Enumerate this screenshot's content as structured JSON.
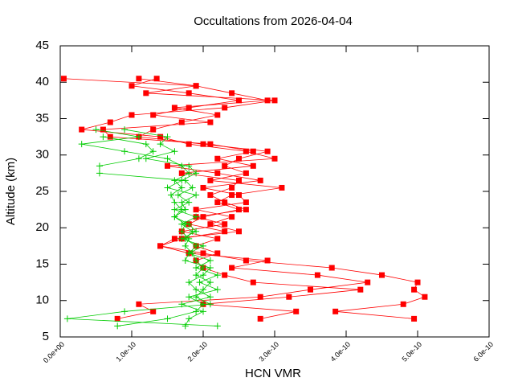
{
  "chart_data": {
    "type": "line",
    "title": "Occultations from 2026-04-04",
    "xlabel": "HCN VMR",
    "ylabel": "Altitude (km)",
    "xlim": [
      0,
      6e-10
    ],
    "ylim": [
      5,
      45
    ],
    "xticks": [
      {
        "value": 0,
        "label": "0.0e+00"
      },
      {
        "value": 1e-10,
        "label": "1.0e-10"
      },
      {
        "value": 2e-10,
        "label": "2.0e-10"
      },
      {
        "value": 3e-10,
        "label": "3.0e-10"
      },
      {
        "value": 4e-10,
        "label": "4.0e-10"
      },
      {
        "value": 5e-10,
        "label": "5.0e-10"
      },
      {
        "value": 6e-10,
        "label": "6.0e-10"
      }
    ],
    "yticks": [
      5,
      10,
      15,
      20,
      25,
      30,
      35,
      40,
      45
    ],
    "series": [
      {
        "color": "#ff0000",
        "marker": "square",
        "x": [
          5e-12,
          1.9e-10,
          2.4e-10,
          2.9e-10,
          1.6e-10,
          2.2e-10,
          1.7e-10,
          1.3e-10,
          1.1e-10,
          2e-10,
          2.9e-10,
          2.5e-10,
          2.3e-10,
          2.6e-10,
          2.1e-10,
          3.1e-10,
          2.4e-10,
          2.2e-10,
          2.5e-10,
          2e-10,
          1.8e-10,
          2.3e-10,
          1.7e-10,
          1.4e-10,
          2e-10,
          2.6e-10,
          3.8e-10,
          4.5e-10,
          5e-10,
          4.95e-10,
          5.1e-10,
          4.8e-10,
          3.85e-10,
          4.95e-10
        ],
        "values": [
          40.5,
          39.5,
          38.5,
          37.5,
          36.5,
          35.5,
          34.5,
          33.5,
          32.5,
          31.5,
          30.5,
          29.5,
          28.5,
          27.5,
          26.5,
          25.5,
          24.5,
          23.5,
          22.5,
          21.5,
          20.5,
          19.5,
          18.5,
          17.5,
          16.5,
          15.5,
          14.5,
          13.5,
          12.5,
          11.5,
          10.5,
          9.5,
          8.5,
          7.5
        ]
      },
      {
        "color": "#ff0000",
        "marker": "square",
        "x": [
          1.1e-10,
          1.9e-10,
          1.2e-10,
          3e-10,
          2.3e-10,
          1e-10,
          7e-11,
          3e-11,
          1.4e-10,
          1.8e-10,
          2.6e-10,
          3e-10,
          1.5e-10,
          2.2e-10,
          2.8e-10,
          2e-10,
          2.5e-10,
          2.6e-10,
          1.9e-10,
          2.4e-10,
          2.1e-10,
          2.5e-10,
          1.6e-10,
          1.4e-10,
          1.8e-10,
          2.9e-10,
          2.4e-10,
          3.6e-10,
          4.3e-10,
          3.5e-10,
          2.8e-10,
          1.1e-10,
          1.3e-10,
          8e-11
        ],
        "values": [
          40.5,
          39.5,
          38.5,
          37.5,
          36.5,
          35.5,
          34.5,
          33.5,
          32.5,
          31.5,
          30.5,
          29.5,
          28.5,
          27.5,
          26.5,
          25.5,
          24.5,
          23.5,
          22.5,
          21.5,
          20.5,
          19.5,
          18.5,
          17.5,
          16.5,
          15.5,
          14.5,
          13.5,
          12.5,
          11.5,
          10.5,
          9.5,
          8.5,
          7.5
        ]
      },
      {
        "color": "#ff0000",
        "marker": "square",
        "x": [
          1.35e-10,
          1e-10,
          1.8e-10,
          2.5e-10,
          1.8e-10,
          1.3e-10,
          2.1e-10,
          6e-11,
          7e-11,
          2.1e-10,
          2.7e-10,
          2.2e-10,
          2.7e-10,
          1.7e-10,
          2.5e-10,
          2.4e-10,
          2.1e-10,
          2.3e-10,
          2.6e-10,
          1.9e-10,
          2.3e-10,
          1.7e-10,
          2.2e-10,
          1.9e-10,
          2.2e-10,
          1.9e-10,
          2e-10,
          2.3e-10,
          2.7e-10,
          4.2e-10,
          3.2e-10,
          2e-10,
          3.3e-10,
          2.8e-10
        ],
        "values": [
          40.5,
          39.5,
          38.5,
          37.5,
          36.5,
          35.5,
          34.5,
          33.5,
          32.5,
          31.5,
          30.5,
          29.5,
          28.5,
          27.5,
          26.5,
          25.5,
          24.5,
          23.5,
          22.5,
          21.5,
          20.5,
          19.5,
          18.5,
          17.5,
          16.5,
          15.5,
          14.5,
          13.5,
          12.5,
          11.5,
          10.5,
          9.5,
          8.5,
          7.5
        ]
      },
      {
        "color": "#00cc00",
        "marker": "plus",
        "x": [
          5e-11,
          1.1e-10,
          3e-11,
          9e-11,
          1.5e-10,
          1.7e-10,
          1.8e-10,
          1.6e-10,
          1.7e-10,
          1.55e-10,
          1.6e-10,
          1.7e-10,
          1.6e-10,
          1.75e-10,
          1.7e-10,
          1.8e-10,
          1.75e-10,
          1.85e-10,
          1.9e-10,
          2e-10,
          1.9e-10,
          2.1e-10,
          2e-10,
          1.9e-10,
          2.1e-10,
          9e-11,
          1e-11,
          2.2e-10
        ],
        "values": [
          33.5,
          32.5,
          31.5,
          30.5,
          29.5,
          28.5,
          27.5,
          26.5,
          25.5,
          24.5,
          23.5,
          22.5,
          21.5,
          20.5,
          19.5,
          18.5,
          17.5,
          16.5,
          15.5,
          14.5,
          13.5,
          12.5,
          11.5,
          10.5,
          9.5,
          8.5,
          7.5,
          6.5
        ]
      },
      {
        "color": "#00cc00",
        "marker": "plus",
        "x": [
          6e-11,
          1.2e-10,
          1.3e-10,
          1.1e-10,
          5.5e-11,
          5.5e-11,
          1.75e-10,
          1.85e-10,
          1.65e-10,
          1.8e-10,
          1.6e-10,
          1.9e-10,
          1.7e-10,
          1.85e-10,
          1.75e-10,
          1.9e-10,
          1.8e-10,
          2.1e-10,
          1.9e-10,
          2.2e-10,
          1.95e-10,
          2.2e-10,
          1.8e-10,
          2e-10,
          1.9e-10,
          1.5e-10,
          8e-11
        ],
        "values": [
          32.5,
          31.5,
          30.5,
          29.5,
          28.5,
          27.5,
          26.5,
          25.5,
          24.5,
          23.5,
          22.5,
          21.5,
          20.5,
          19.5,
          18.5,
          17.5,
          16.5,
          15.5,
          14.5,
          13.5,
          12.5,
          11.5,
          10.5,
          9.5,
          8.5,
          7.5,
          6.5
        ]
      },
      {
        "color": "#00cc00",
        "marker": "plus",
        "x": [
          9e-11,
          1.5e-10,
          1.4e-10,
          1.6e-10,
          1.2e-10,
          1.8e-10,
          1.9e-10,
          1.7e-10,
          1.5e-10,
          1.9e-10,
          1.7e-10,
          1.75e-10,
          1.6e-10,
          1.8e-10,
          1.9e-10,
          1.7e-10,
          2e-10,
          1.8e-10,
          1.75e-10,
          2.1e-10,
          2e-10,
          1.8e-10,
          1.9e-10,
          2.1e-10,
          1.7e-10,
          2e-10,
          1.8e-10,
          1.75e-10
        ],
        "values": [
          33.5,
          32.5,
          31.5,
          30.5,
          29.5,
          28.5,
          27.5,
          26.5,
          25.5,
          24.5,
          23.5,
          22.5,
          21.5,
          20.5,
          19.5,
          18.5,
          17.5,
          16.5,
          15.5,
          14.5,
          13.5,
          12.5,
          11.5,
          10.5,
          9.5,
          8.5,
          7.5,
          6.5
        ]
      }
    ]
  }
}
